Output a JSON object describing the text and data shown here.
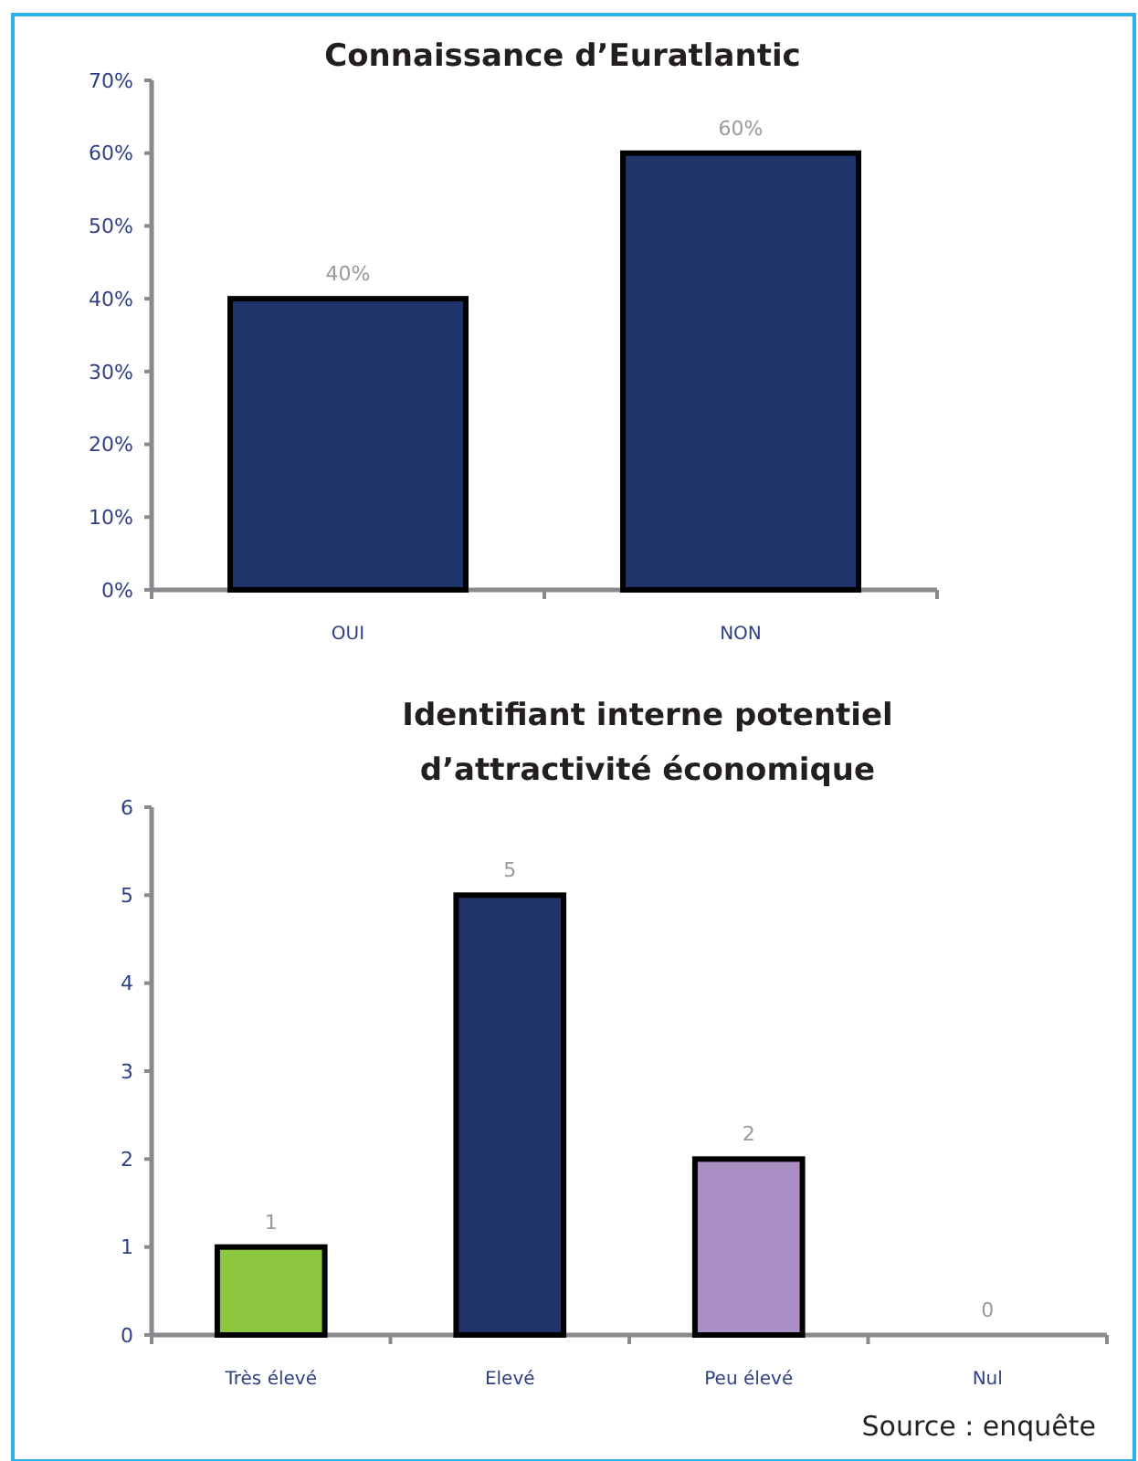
{
  "chart_data": [
    {
      "type": "bar",
      "title": "Connaissance d’Euratlantic",
      "categories": [
        "OUI",
        "NON"
      ],
      "values": [
        40,
        60
      ],
      "colors": [
        "#1f3469",
        "#1f3469"
      ],
      "value_labels": [
        "40%",
        "60%"
      ],
      "ylim": [
        0,
        70
      ],
      "yticks": [
        {
          "value": 0,
          "label": "0%"
        },
        {
          "value": 10,
          "label": "10%"
        },
        {
          "value": 20,
          "label": "20%"
        },
        {
          "value": 30,
          "label": "30%"
        },
        {
          "value": 40,
          "label": "40%"
        },
        {
          "value": 50,
          "label": "50%"
        },
        {
          "value": 60,
          "label": "60%"
        },
        {
          "value": 70,
          "label": "70%"
        }
      ]
    },
    {
      "type": "bar",
      "title": "Identifiant interne potentiel\nd’attractivité économique",
      "categories": [
        "Très élevé",
        "Elevé",
        "Peu élevé",
        "Nul"
      ],
      "values": [
        1,
        5,
        2,
        0
      ],
      "colors": [
        "#8dc63f",
        "#1f3469",
        "#a98fc4",
        "#1f3469"
      ],
      "data_labels": true,
      "ylim": [
        0,
        6
      ],
      "yticks": [
        0,
        1,
        2,
        3,
        4,
        5,
        6
      ],
      "annotations": [
        "Source : enquête"
      ]
    }
  ]
}
